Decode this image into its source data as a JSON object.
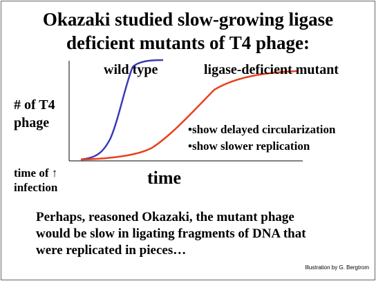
{
  "title": [
    "Okazaki studied slow-growing ligase",
    "deficient mutants of T4 phage:"
  ],
  "graph": {
    "wild_label": "wild type",
    "mutant_label": "ligase-deficient mutant",
    "y_label": [
      "# of T4",
      "phage"
    ],
    "x_label": "time",
    "origin_label": [
      "time of ↑",
      "infection"
    ],
    "bullets": [
      "•show delayed circularization",
      "•show slower replication"
    ]
  },
  "paragraph": [
    "Perhaps, reasoned Okazaki, the mutant phage",
    "would be slow in ligating fragments of DNA that",
    "were replicated in pieces…"
  ],
  "credit": "Illustration by G. Bergtrom"
}
